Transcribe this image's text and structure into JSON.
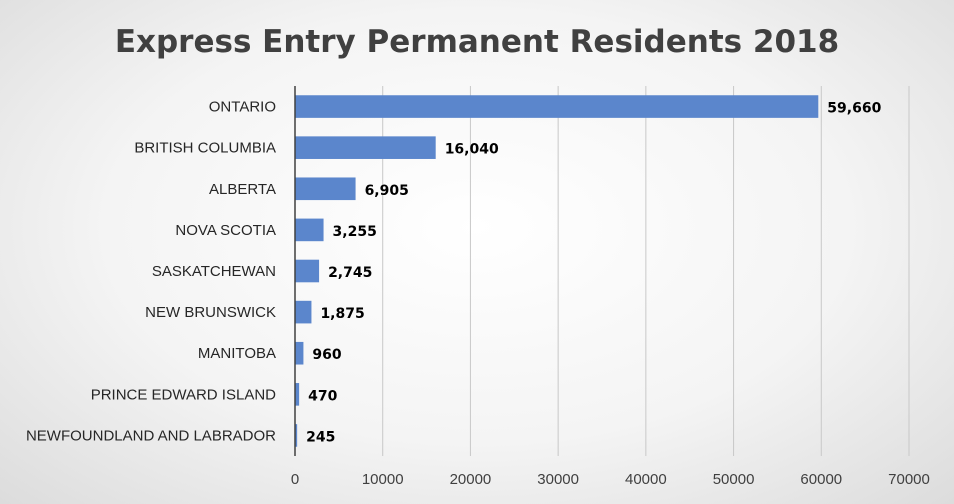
{
  "chart_data": {
    "type": "bar",
    "orientation": "horizontal",
    "title": "Express Entry Permanent Residents 2018",
    "xlabel": "",
    "ylabel": "",
    "categories": [
      "ONTARIO",
      "BRITISH COLUMBIA",
      "ALBERTA",
      "NOVA SCOTIA",
      "SASKATCHEWAN",
      "NEW BRUNSWICK",
      "MANITOBA",
      "PRINCE EDWARD ISLAND",
      "NEWFOUNDLAND AND LABRADOR"
    ],
    "values": [
      59660,
      16040,
      6905,
      3255,
      2745,
      1875,
      960,
      470,
      245
    ],
    "data_labels": [
      "59,660",
      "16,040",
      "6,905",
      "3,255",
      "2,745",
      "1,875",
      "960",
      "470",
      "245"
    ],
    "xlim": [
      0,
      70000
    ],
    "xticks": [
      0,
      10000,
      20000,
      30000,
      40000,
      50000,
      60000,
      70000
    ],
    "xtick_labels": [
      "0",
      "10000",
      "20000",
      "30000",
      "40000",
      "50000",
      "60000",
      "70000"
    ],
    "grid": "vertical",
    "legend": "none",
    "colors": {
      "bar": "#5b86cc",
      "gridline": "#c8c8c8",
      "title": "#404040"
    }
  }
}
